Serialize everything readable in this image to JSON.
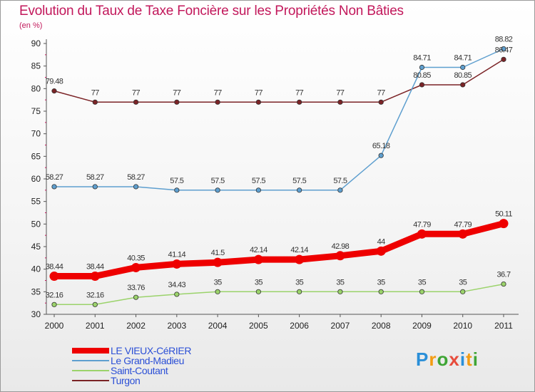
{
  "chart_data": {
    "type": "line",
    "title": "Evolution du Taux de Taxe Foncière sur les Propriétés Non Bâties",
    "ylabel": "(en %)",
    "xlabel": "",
    "ylim": [
      30,
      90
    ],
    "yticks": [
      "30",
      "35",
      "40",
      "45",
      "50",
      "55",
      "60",
      "65",
      "70",
      "75",
      "80",
      "85",
      "90"
    ],
    "categories": [
      "2000",
      "2001",
      "2002",
      "2003",
      "2004",
      "2005",
      "2006",
      "2007",
      "2008",
      "2009",
      "2010",
      "2011"
    ],
    "series": [
      {
        "name": "LE VIEUX-CéRIER",
        "color": "#ee0000",
        "values": [
          38.44,
          38.44,
          40.35,
          41.14,
          41.5,
          42.14,
          42.14,
          42.98,
          44,
          47.79,
          47.79,
          50.11
        ],
        "labels": [
          "38.44",
          "38.44",
          "40.35",
          "41.14",
          "41.5",
          "42.14",
          "42.14",
          "42.98",
          "44",
          "47.79",
          "47.79",
          "50.11"
        ]
      },
      {
        "name": "Le Grand-Madieu",
        "color": "#5e9fcf",
        "values": [
          58.27,
          58.27,
          58.27,
          57.5,
          57.5,
          57.5,
          57.5,
          57.5,
          65.18,
          84.71,
          84.71,
          88.82
        ],
        "labels": [
          "58.27",
          "58.27",
          "58.27",
          "57.5",
          "57.5",
          "57.5",
          "57.5",
          "57.5",
          "65.18",
          "84.71",
          "84.71",
          "88.82"
        ]
      },
      {
        "name": "Saint-Coutant",
        "color": "#9bd36b",
        "values": [
          32.16,
          32.16,
          33.76,
          34.43,
          35,
          35,
          35,
          35,
          35,
          35,
          35,
          36.7
        ],
        "labels": [
          "32.16",
          "32.16",
          "33.76",
          "34.43",
          "35",
          "35",
          "35",
          "35",
          "35",
          "35",
          "35",
          "36.7"
        ]
      },
      {
        "name": "Turgon",
        "color": "#7b2326",
        "values": [
          79.48,
          77,
          77,
          77,
          77,
          77,
          77,
          77,
          77,
          80.85,
          80.85,
          86.47
        ],
        "labels": [
          "79.48",
          "77",
          "77",
          "77",
          "77",
          "77",
          "77",
          "77",
          "77",
          "80.85",
          "80.85",
          "86.47"
        ]
      }
    ],
    "legend_position": "bottom-left",
    "grid": false
  },
  "logo": {
    "letters": [
      "P",
      "r",
      "o",
      "x",
      "i",
      "t",
      "i"
    ],
    "colors": [
      "#2a8fd8",
      "#f39c12",
      "#3fa535",
      "#e74c3c",
      "#2a8fd8",
      "#f39c12",
      "#3fa535"
    ]
  }
}
